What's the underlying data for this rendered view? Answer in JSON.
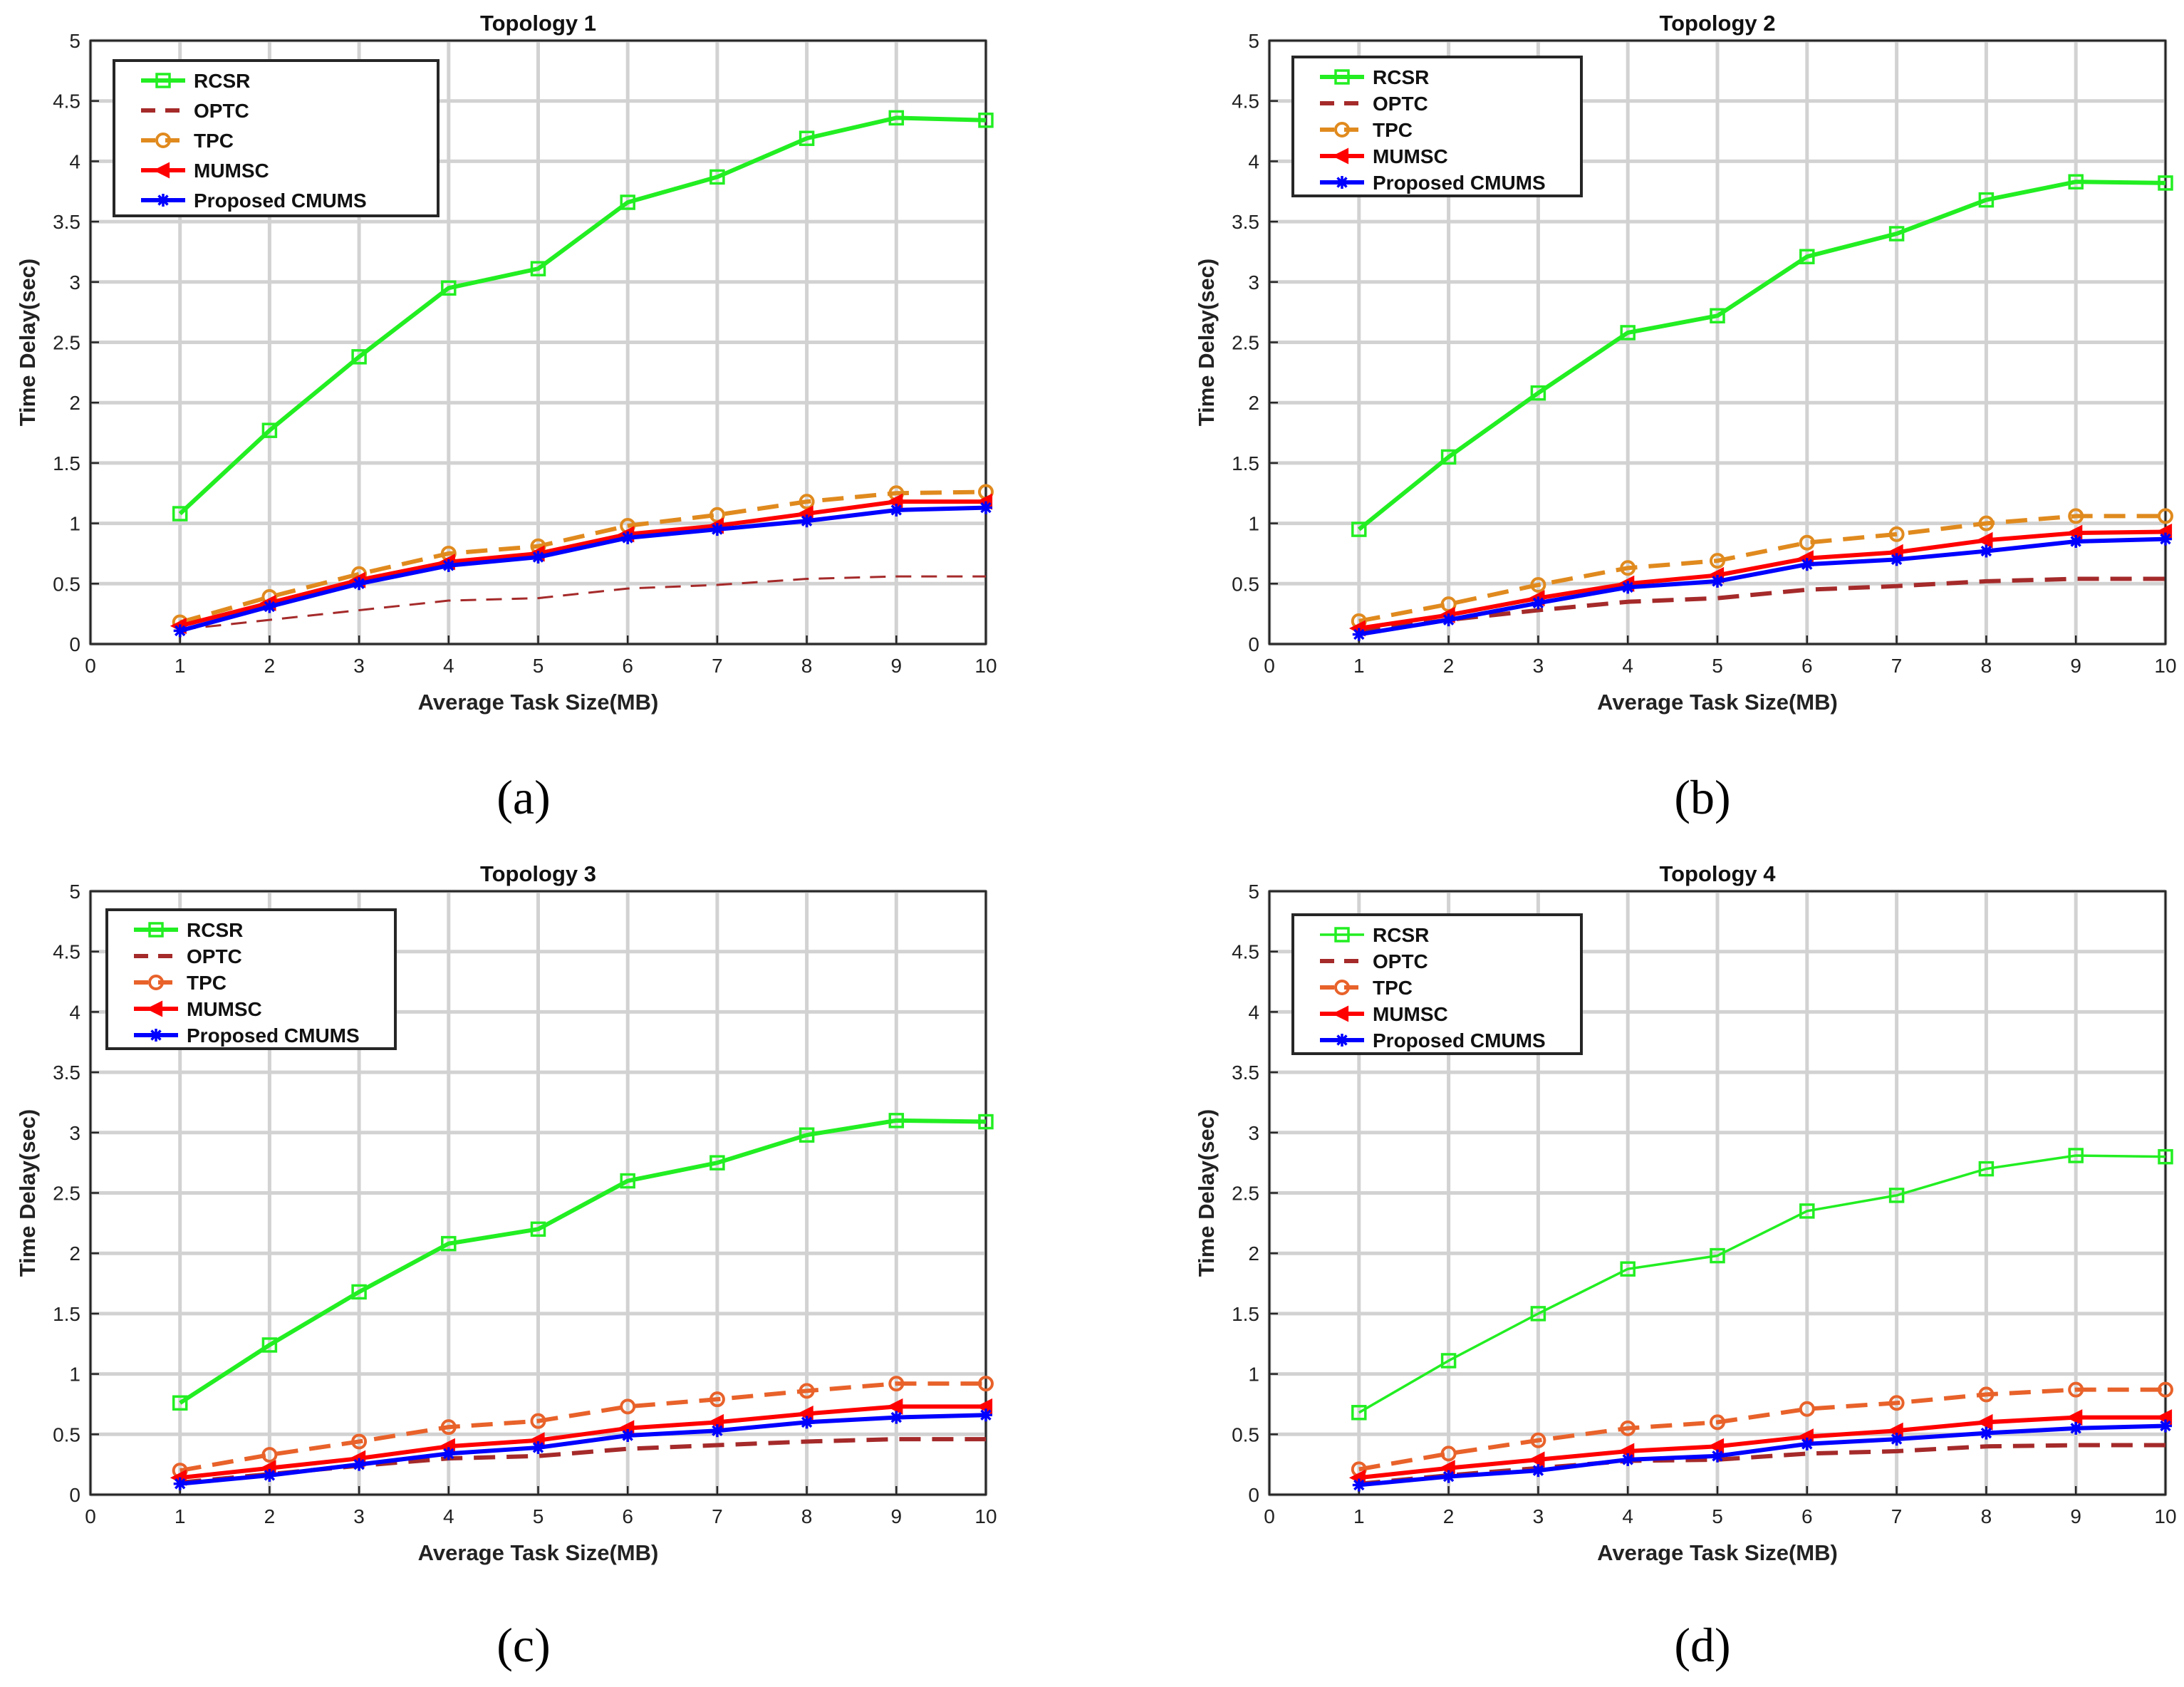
{
  "figure": {
    "captions": [
      "(a)",
      "(b)",
      "(c)",
      "(d)"
    ]
  },
  "chart_data": [
    {
      "type": "line",
      "title": "Topology 1",
      "xlabel": "Average Task Size(MB)",
      "ylabel": "Time Delay(sec)",
      "xlim": [
        0,
        10
      ],
      "ylim": [
        0,
        5
      ],
      "xticks": [
        "0",
        "1",
        "2",
        "3",
        "4",
        "5",
        "6",
        "7",
        "8",
        "9",
        "10"
      ],
      "yticks": [
        "0",
        "0.5",
        "1",
        "1.5",
        "2",
        "2.5",
        "3",
        "3.5",
        "4",
        "4.5",
        "5"
      ],
      "grid": true,
      "legend_position": "top-left",
      "x": [
        1,
        2,
        3,
        4,
        5,
        6,
        7,
        8,
        9,
        10
      ],
      "series": [
        {
          "name": "RCSR",
          "color": "#22ee22",
          "marker": "square",
          "dash": "solid",
          "values": [
            1.08,
            1.77,
            2.38,
            2.95,
            3.11,
            3.66,
            3.87,
            4.19,
            4.36,
            4.34
          ]
        },
        {
          "name": "OPTC",
          "color": "#a52a2a",
          "marker": "none",
          "dash": "dashed",
          "values": [
            0.12,
            0.2,
            0.28,
            0.36,
            0.38,
            0.46,
            0.49,
            0.54,
            0.56,
            0.56
          ]
        },
        {
          "name": "TPC",
          "color": "#e08a1e",
          "marker": "circle",
          "dash": "dashed",
          "values": [
            0.18,
            0.39,
            0.58,
            0.75,
            0.81,
            0.98,
            1.07,
            1.18,
            1.25,
            1.26
          ]
        },
        {
          "name": "MUMSC",
          "color": "#ff0000",
          "marker": "triangle-left",
          "dash": "solid",
          "values": [
            0.15,
            0.34,
            0.53,
            0.68,
            0.75,
            0.91,
            0.98,
            1.08,
            1.18,
            1.18
          ]
        },
        {
          "name": "Proposed CMUMS",
          "color": "#0000ff",
          "marker": "star",
          "dash": "solid",
          "values": [
            0.11,
            0.31,
            0.5,
            0.65,
            0.72,
            0.88,
            0.95,
            1.02,
            1.11,
            1.13
          ]
        }
      ]
    },
    {
      "type": "line",
      "title": "Topology 2",
      "xlabel": "Average Task Size(MB)",
      "ylabel": "Time Delay(sec)",
      "xlim": [
        0,
        10
      ],
      "ylim": [
        0,
        5
      ],
      "xticks": [
        "0",
        "1",
        "2",
        "3",
        "4",
        "5",
        "6",
        "7",
        "8",
        "9",
        "10"
      ],
      "yticks": [
        "0",
        "0.5",
        "1",
        "1.5",
        "2",
        "2.5",
        "3",
        "3.5",
        "4",
        "4.5",
        "5"
      ],
      "grid": true,
      "legend_position": "top-left",
      "x": [
        1,
        2,
        3,
        4,
        5,
        6,
        7,
        8,
        9,
        10
      ],
      "series": [
        {
          "name": "RCSR",
          "color": "#22ee22",
          "marker": "square",
          "dash": "solid",
          "values": [
            0.95,
            1.55,
            2.08,
            2.58,
            2.72,
            3.21,
            3.4,
            3.68,
            3.83,
            3.82
          ]
        },
        {
          "name": "OPTC",
          "color": "#a52a2a",
          "marker": "none",
          "dash": "dashed",
          "values": [
            0.11,
            0.2,
            0.28,
            0.35,
            0.38,
            0.45,
            0.48,
            0.52,
            0.54,
            0.54
          ]
        },
        {
          "name": "TPC",
          "color": "#e08a1e",
          "marker": "circle",
          "dash": "dashed",
          "values": [
            0.19,
            0.33,
            0.49,
            0.63,
            0.69,
            0.84,
            0.91,
            1.0,
            1.06,
            1.06
          ]
        },
        {
          "name": "MUMSC",
          "color": "#ff0000",
          "marker": "triangle-left",
          "dash": "solid",
          "values": [
            0.13,
            0.24,
            0.38,
            0.5,
            0.57,
            0.71,
            0.76,
            0.86,
            0.92,
            0.93
          ]
        },
        {
          "name": "Proposed CMUMS",
          "color": "#0000ff",
          "marker": "star",
          "dash": "solid",
          "values": [
            0.08,
            0.2,
            0.34,
            0.47,
            0.52,
            0.66,
            0.7,
            0.77,
            0.85,
            0.87
          ]
        }
      ]
    },
    {
      "type": "line",
      "title": "Topology 3",
      "xlabel": "Average Task Size(MB)",
      "ylabel": "Time Delay(sec)",
      "xlim": [
        0,
        10
      ],
      "ylim": [
        0,
        5
      ],
      "xticks": [
        "0",
        "1",
        "2",
        "3",
        "4",
        "5",
        "6",
        "7",
        "8",
        "9",
        "10"
      ],
      "yticks": [
        "0",
        "0.5",
        "1",
        "1.5",
        "2",
        "2.5",
        "3",
        "3.5",
        "4",
        "4.5",
        "5"
      ],
      "grid": true,
      "legend_position": "top-left",
      "x": [
        1,
        2,
        3,
        4,
        5,
        6,
        7,
        8,
        9,
        10
      ],
      "series": [
        {
          "name": "RCSR",
          "color": "#22ee22",
          "marker": "square",
          "dash": "solid",
          "values": [
            0.76,
            1.24,
            1.68,
            2.08,
            2.2,
            2.6,
            2.75,
            2.98,
            3.1,
            3.09
          ]
        },
        {
          "name": "OPTC",
          "color": "#a52a2a",
          "marker": "none",
          "dash": "dashed",
          "values": [
            0.1,
            0.17,
            0.24,
            0.3,
            0.32,
            0.38,
            0.41,
            0.44,
            0.46,
            0.46
          ]
        },
        {
          "name": "TPC",
          "color": "#e8622a",
          "marker": "circle",
          "dash": "dashed",
          "values": [
            0.2,
            0.33,
            0.44,
            0.56,
            0.61,
            0.73,
            0.79,
            0.86,
            0.92,
            0.92
          ]
        },
        {
          "name": "MUMSC",
          "color": "#ff0000",
          "marker": "triangle-left",
          "dash": "solid",
          "values": [
            0.14,
            0.22,
            0.3,
            0.4,
            0.45,
            0.55,
            0.6,
            0.67,
            0.73,
            0.73
          ]
        },
        {
          "name": "Proposed CMUMS",
          "color": "#0000ff",
          "marker": "star",
          "dash": "solid",
          "values": [
            0.09,
            0.16,
            0.25,
            0.34,
            0.39,
            0.49,
            0.53,
            0.6,
            0.64,
            0.66
          ]
        }
      ]
    },
    {
      "type": "line",
      "title": "Topology 4",
      "xlabel": "Average Task Size(MB)",
      "ylabel": "Time Delay(sec)",
      "xlim": [
        0,
        10
      ],
      "ylim": [
        0,
        5
      ],
      "xticks": [
        "0",
        "1",
        "2",
        "3",
        "4",
        "5",
        "6",
        "7",
        "8",
        "9",
        "10"
      ],
      "yticks": [
        "0",
        "0.5",
        "1",
        "1.5",
        "2",
        "2.5",
        "3",
        "3.5",
        "4",
        "4.5",
        "5"
      ],
      "grid": true,
      "legend_position": "top-left",
      "x": [
        1,
        2,
        3,
        4,
        5,
        6,
        7,
        8,
        9,
        10
      ],
      "series": [
        {
          "name": "RCSR",
          "color": "#22ee22",
          "marker": "square",
          "dash": "solid",
          "thin": true,
          "values": [
            0.68,
            1.11,
            1.5,
            1.87,
            1.98,
            2.35,
            2.48,
            2.7,
            2.81,
            2.8
          ]
        },
        {
          "name": "OPTC",
          "color": "#a52a2a",
          "marker": "none",
          "dash": "dashed",
          "values": [
            0.09,
            0.16,
            0.22,
            0.28,
            0.29,
            0.34,
            0.36,
            0.4,
            0.41,
            0.41
          ]
        },
        {
          "name": "TPC",
          "color": "#e8622a",
          "marker": "circle",
          "dash": "dashed",
          "values": [
            0.21,
            0.34,
            0.45,
            0.55,
            0.6,
            0.71,
            0.76,
            0.83,
            0.87,
            0.87
          ]
        },
        {
          "name": "MUMSC",
          "color": "#ff0000",
          "marker": "triangle-left",
          "dash": "solid",
          "values": [
            0.14,
            0.22,
            0.29,
            0.36,
            0.4,
            0.48,
            0.53,
            0.6,
            0.64,
            0.64
          ]
        },
        {
          "name": "Proposed CMUMS",
          "color": "#0000ff",
          "marker": "star",
          "dash": "solid",
          "values": [
            0.08,
            0.15,
            0.2,
            0.29,
            0.32,
            0.42,
            0.46,
            0.51,
            0.55,
            0.57
          ]
        }
      ]
    }
  ]
}
